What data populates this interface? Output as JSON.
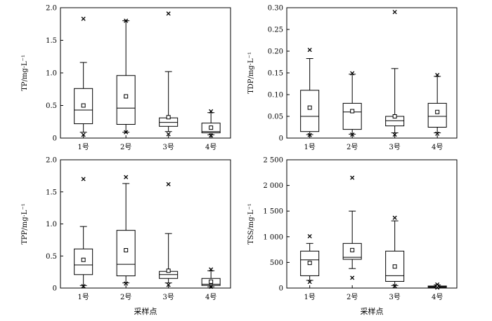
{
  "chart_data": [
    {
      "type": "box",
      "ylabel": "TP/mg·L⁻¹",
      "xlabel": "",
      "ylim": [
        0,
        2.0
      ],
      "yticks": [
        "0",
        "0.5",
        "1.0",
        "1.5",
        "2.0"
      ],
      "ytick_values": [
        0,
        0.5,
        1.0,
        1.5,
        2.0
      ],
      "categories": [
        "1号",
        "2号",
        "3号",
        "4号"
      ],
      "boxes": [
        {
          "whisker_low": 0.09,
          "q1": 0.22,
          "median": 0.43,
          "q3": 0.76,
          "whisker_high": 1.16,
          "mean": 0.5,
          "outliers": [
            1.83,
            0.05
          ]
        },
        {
          "whisker_low": 0.09,
          "q1": 0.21,
          "median": 0.46,
          "q3": 0.96,
          "whisker_high": 1.8,
          "mean": 0.64,
          "outliers": [
            1.8,
            0.09
          ]
        },
        {
          "whisker_low": 0.1,
          "q1": 0.18,
          "median": 0.24,
          "q3": 0.31,
          "whisker_high": 1.02,
          "mean": 0.32,
          "outliers": [
            1.91,
            0.06
          ]
        },
        {
          "whisker_low": 0.05,
          "q1": 0.08,
          "median": 0.1,
          "q3": 0.23,
          "whisker_high": 0.39,
          "mean": 0.16,
          "outliers": [
            0.41,
            0.04
          ]
        }
      ]
    },
    {
      "type": "box",
      "ylabel": "TDP/mg·L⁻¹",
      "xlabel": "",
      "ylim": [
        0,
        0.3
      ],
      "yticks": [
        "0",
        "0.05",
        "0.10",
        "0.15",
        "0.20",
        "0.25",
        "0.30"
      ],
      "ytick_values": [
        0,
        0.05,
        0.1,
        0.15,
        0.2,
        0.25,
        0.3
      ],
      "categories": [
        "1号",
        "2号",
        "3号",
        "4号"
      ],
      "boxes": [
        {
          "whisker_low": 0.008,
          "q1": 0.015,
          "median": 0.05,
          "q3": 0.11,
          "whisker_high": 0.183,
          "mean": 0.07,
          "outliers": [
            0.203,
            0.007
          ]
        },
        {
          "whisker_low": 0.009,
          "q1": 0.02,
          "median": 0.06,
          "q3": 0.08,
          "whisker_high": 0.147,
          "mean": 0.062,
          "outliers": [
            0.149,
            0.008
          ]
        },
        {
          "whisker_low": 0.012,
          "q1": 0.028,
          "median": 0.04,
          "q3": 0.05,
          "whisker_high": 0.16,
          "mean": 0.05,
          "outliers": [
            0.29,
            0.008
          ]
        },
        {
          "whisker_low": 0.012,
          "q1": 0.025,
          "median": 0.05,
          "q3": 0.08,
          "whisker_high": 0.142,
          "mean": 0.06,
          "outliers": [
            0.145,
            0.01
          ]
        }
      ]
    },
    {
      "type": "box",
      "ylabel": "TPP/mg·L⁻¹",
      "xlabel": "采样点",
      "ylim": [
        0,
        2.0
      ],
      "yticks": [
        "0",
        "0.5",
        "1.0",
        "1.5",
        "2.0"
      ],
      "ytick_values": [
        0,
        0.5,
        1.0,
        1.5,
        2.0
      ],
      "categories": [
        "1号",
        "2号",
        "3号",
        "4号"
      ],
      "boxes": [
        {
          "whisker_low": 0.04,
          "q1": 0.21,
          "median": 0.36,
          "q3": 0.61,
          "whisker_high": 0.96,
          "mean": 0.44,
          "outliers": [
            1.7,
            0.03
          ]
        },
        {
          "whisker_low": 0.08,
          "q1": 0.19,
          "median": 0.37,
          "q3": 0.9,
          "whisker_high": 1.63,
          "mean": 0.59,
          "outliers": [
            1.73,
            0.07
          ]
        },
        {
          "whisker_low": 0.08,
          "q1": 0.15,
          "median": 0.21,
          "q3": 0.26,
          "whisker_high": 0.85,
          "mean": 0.27,
          "outliers": [
            1.62,
            0.05
          ]
        },
        {
          "whisker_low": 0.02,
          "q1": 0.04,
          "median": 0.06,
          "q3": 0.15,
          "whisker_high": 0.27,
          "mean": 0.1,
          "outliers": [
            0.29,
            0.02
          ]
        }
      ]
    },
    {
      "type": "box",
      "ylabel": "TSS/mg·L⁻¹",
      "xlabel": "采样点",
      "ylim": [
        0,
        2500
      ],
      "yticks": [
        "0",
        "500",
        "1 000",
        "1 500",
        "2 000",
        "2 500"
      ],
      "ytick_values": [
        0,
        500,
        1000,
        1500,
        2000,
        2500
      ],
      "categories": [
        "1号",
        "2号",
        "3号",
        "4号"
      ],
      "boxes": [
        {
          "whisker_low": 150,
          "q1": 240,
          "median": 550,
          "q3": 720,
          "whisker_high": 870,
          "mean": 490,
          "outliers": [
            1010,
            120
          ]
        },
        {
          "whisker_low": 380,
          "q1": 560,
          "median": 600,
          "q3": 870,
          "whisker_high": 1500,
          "mean": 740,
          "outliers": [
            2150,
            200
          ]
        },
        {
          "whisker_low": 50,
          "q1": 130,
          "median": 240,
          "q3": 720,
          "whisker_high": 1310,
          "mean": 420,
          "outliers": [
            1370,
            40
          ]
        },
        {
          "whisker_low": 5,
          "q1": 15,
          "median": 25,
          "q3": 40,
          "whisker_high": 60,
          "mean": 30,
          "outliers": [
            70,
            10
          ]
        }
      ]
    }
  ]
}
